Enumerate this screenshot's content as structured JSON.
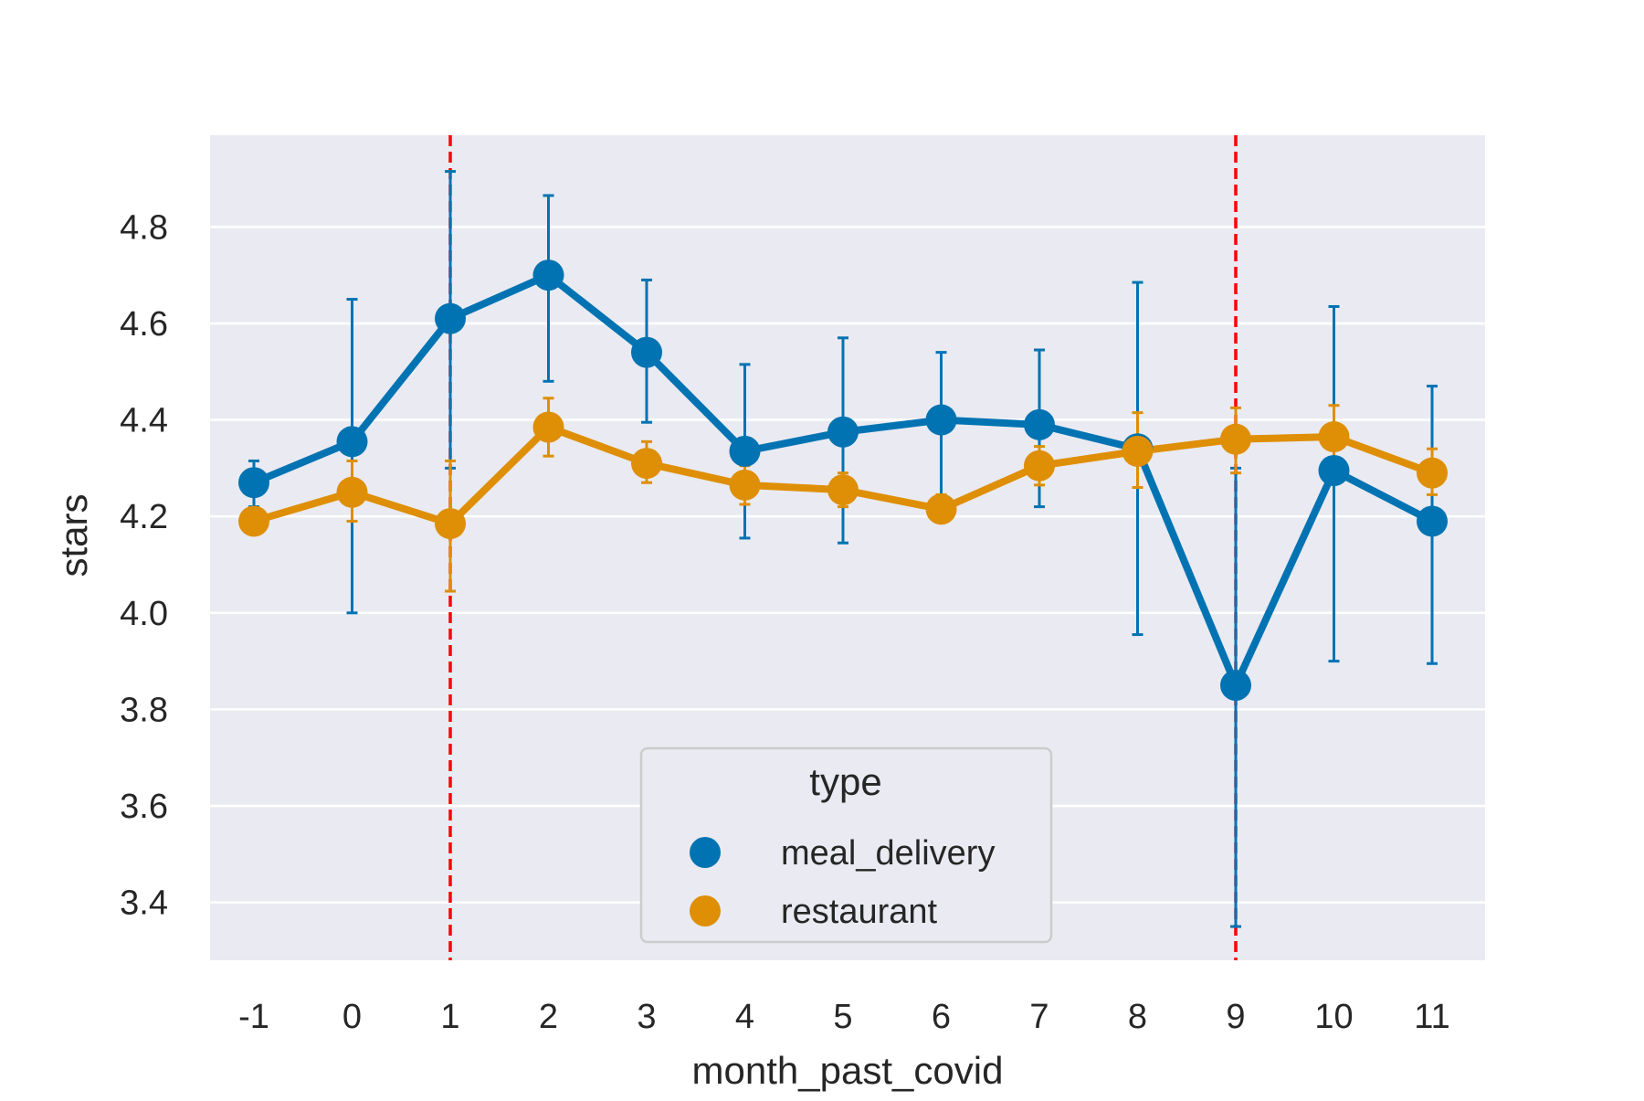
{
  "chart_data": {
    "type": "line",
    "title": "",
    "xlabel": "month_past_covid",
    "ylabel": "stars",
    "categories": [
      "-1",
      "0",
      "1",
      "2",
      "3",
      "4",
      "5",
      "6",
      "7",
      "8",
      "9",
      "10",
      "11"
    ],
    "ylim": [
      3.28,
      4.99
    ],
    "yticks": [
      "3.4",
      "3.6",
      "3.8",
      "4.0",
      "4.2",
      "4.4",
      "4.6",
      "4.8"
    ],
    "grid": true,
    "legend": {
      "title": "type",
      "placement": "lower-center"
    },
    "reference_lines": {
      "x": [
        "1",
        "9"
      ],
      "color": "#ff0000",
      "style": "dashed"
    },
    "series": [
      {
        "name": "meal_delivery",
        "color": "#0173b2",
        "values": [
          4.27,
          4.355,
          4.61,
          4.7,
          4.54,
          4.335,
          4.375,
          4.4,
          4.39,
          4.34,
          3.85,
          4.295,
          4.19
        ],
        "error_low": [
          4.22,
          4.0,
          4.3,
          4.48,
          4.395,
          4.155,
          4.145,
          4.24,
          4.22,
          3.955,
          3.35,
          3.9,
          3.895
        ],
        "error_high": [
          4.315,
          4.65,
          4.915,
          4.865,
          4.69,
          4.515,
          4.57,
          4.54,
          4.545,
          4.685,
          4.3,
          4.635,
          4.47
        ]
      },
      {
        "name": "restaurant",
        "color": "#de8f05",
        "values": [
          4.19,
          4.25,
          4.185,
          4.385,
          4.31,
          4.265,
          4.255,
          4.215,
          4.305,
          4.335,
          4.36,
          4.365,
          4.29
        ],
        "error_low": [
          4.17,
          4.19,
          4.045,
          4.325,
          4.27,
          4.225,
          4.22,
          4.19,
          4.265,
          4.26,
          4.29,
          4.3,
          4.245
        ],
        "error_high": [
          4.215,
          4.315,
          4.315,
          4.445,
          4.355,
          4.305,
          4.29,
          4.245,
          4.345,
          4.415,
          4.425,
          4.43,
          4.34
        ]
      }
    ]
  }
}
